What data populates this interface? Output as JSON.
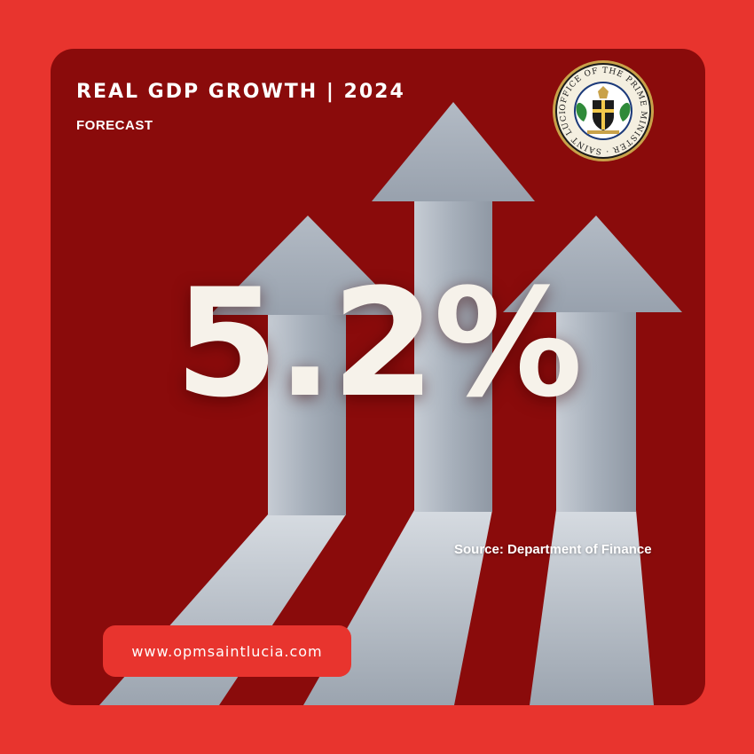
{
  "header": {
    "title": "REAL GDP GROWTH | 2024",
    "subtitle": "FORECAST"
  },
  "headline_value": "5.2%",
  "source": "Source: Department of Finance",
  "website": "www.opmsaintlucia.com",
  "seal": {
    "icon": "office-of-the-prime-minister-seal-icon",
    "text": "OFFICE OF THE PRIME MINISTER · SAINT LUCIA"
  },
  "colors": {
    "background": "#e8342e",
    "card": "#8a0b0b",
    "arrow": "#a9b2bd",
    "text": "#ffffff",
    "headline": "#f6f2ea"
  }
}
